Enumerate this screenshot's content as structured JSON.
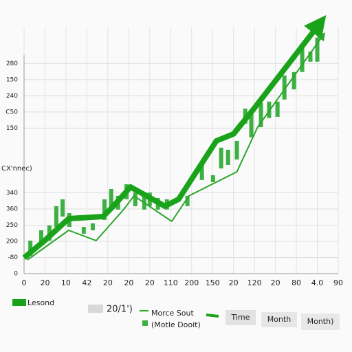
{
  "chart_data": {
    "type": "candlestick",
    "y_label": "CX'nnec)",
    "xlim": [
      0,
      15
    ],
    "ylim": [
      0,
      16.5
    ],
    "grid": true,
    "xticks": [
      0,
      {
        "value": 1,
        "label": "20"
      },
      {
        "value": 2,
        "label": "10"
      },
      {
        "value": 3,
        "label": "42"
      },
      {
        "value": 4,
        "label": "20"
      },
      {
        "value": 5,
        "label": "20"
      },
      {
        "value": 6,
        "label": "20"
      },
      {
        "value": 7,
        "label": "110"
      },
      {
        "value": 8,
        "label": "200"
      },
      {
        "value": 9,
        "label": "150"
      },
      {
        "value": 10,
        "label": "20"
      },
      {
        "value": 11,
        "label": "120"
      },
      {
        "value": 12,
        "label": "20"
      },
      {
        "value": 13,
        "label": "80"
      },
      {
        "value": 14,
        "label": "4.0"
      },
      {
        "value": 15,
        "label": "90"
      }
    ],
    "yticks": [
      0,
      {
        "value": 1,
        "label": "-80"
      },
      {
        "value": 2,
        "label": "200"
      },
      {
        "value": 3,
        "label": "250"
      },
      {
        "value": 4,
        "label": "360"
      },
      {
        "value": 5,
        "label": "340"
      },
      {
        "value": 9,
        "label": "150"
      },
      {
        "value": 10,
        "label": "C50"
      },
      {
        "value": 11,
        "label": "240"
      },
      {
        "value": 12,
        "label": "150"
      },
      {
        "value": 13,
        "label": "280"
      }
    ],
    "series": [
      {
        "name": "Lesond",
        "color": "#1aa31a",
        "x": [
          0,
          0.98,
          2.13,
          3.77,
          4.26,
          5.08,
          5.74,
          6.72,
          7.38,
          9.18,
          10.0,
          10.98,
          14.1
        ],
        "values": [
          0.98,
          2.04,
          3.4,
          3.53,
          4.17,
          5.36,
          4.89,
          4.17,
          4.6,
          8.21,
          8.64,
          10.21,
          15.45
        ]
      },
      {
        "name": "Morce Sout",
        "color": "#2aa52a",
        "x": [
          0.16,
          2.13,
          3.44,
          4.75,
          5.25,
          7.05,
          7.87,
          10.16,
          11.15,
          14.26
        ],
        "values": [
          0.85,
          2.68,
          2.04,
          3.96,
          4.81,
          3.23,
          4.81,
          6.3,
          9.06,
          14.72
        ]
      }
    ],
    "candles": {
      "name": "(Motle Dooit)",
      "color": "#3cb043",
      "x": [
        0.3,
        0.82,
        1.21,
        1.54,
        1.84,
        2.16,
        2.85,
        3.28,
        3.84,
        4.16,
        4.49,
        4.89,
        5.31,
        5.74,
        6.0,
        6.39,
        6.82,
        7.8,
        8.49,
        9.02,
        9.41,
        9.74,
        10.16,
        10.56,
        10.85,
        11.31,
        11.7,
        12.1,
        12.43,
        12.89,
        13.28,
        13.67,
        14.0
      ],
      "open": [
        1.11,
        1.83,
        2.04,
        2.89,
        3.53,
        2.89,
        2.47,
        2.68,
        3.32,
        4.17,
        3.96,
        4.6,
        4.17,
        3.96,
        4.17,
        3.96,
        3.96,
        4.17,
        5.79,
        5.66,
        6.51,
        6.72,
        7.06,
        9.28,
        8.43,
        9.06,
        9.62,
        9.7,
        10.77,
        11.4,
        12.47,
        13.11,
        13.11
      ],
      "close": [
        2.04,
        2.68,
        2.98,
        4.17,
        4.6,
        3.74,
        2.89,
        3.11,
        4.6,
        5.23,
        4.81,
        5.53,
        5.02,
        4.81,
        5.02,
        4.68,
        4.6,
        4.81,
        6.94,
        6.09,
        7.79,
        7.66,
        8.21,
        10.21,
        10.13,
        10.55,
        10.64,
        10.64,
        12.26,
        12.47,
        13.96,
        13.74,
        14.6
      ]
    },
    "extra_label": "20/1')",
    "buttons": [
      "Time",
      "Month",
      "Month)"
    ]
  }
}
